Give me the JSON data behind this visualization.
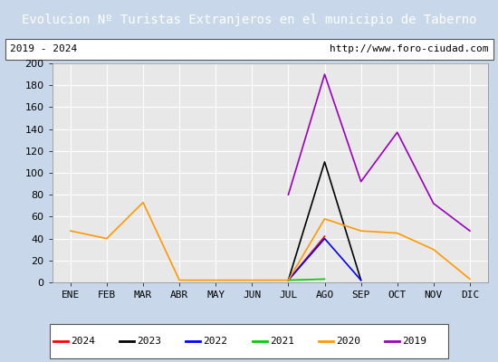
{
  "title": "Evolucion Nº Turistas Extranjeros en el municipio de Taberno",
  "subtitle_left": "2019 - 2024",
  "subtitle_right": "http://www.foro-ciudad.com",
  "months": [
    "ENE",
    "FEB",
    "MAR",
    "ABR",
    "MAY",
    "JUN",
    "JUL",
    "AGO",
    "SEP",
    "OCT",
    "NOV",
    "DIC"
  ],
  "ylim": [
    0,
    200
  ],
  "yticks": [
    0,
    20,
    40,
    60,
    80,
    100,
    120,
    140,
    160,
    180,
    200
  ],
  "series": {
    "2024": {
      "color": "#ff0000",
      "linewidth": 1.2,
      "data": [
        null,
        null,
        null,
        null,
        null,
        null,
        2,
        42,
        null,
        null,
        null,
        null
      ]
    },
    "2023": {
      "color": "#000000",
      "linewidth": 1.2,
      "data": [
        null,
        null,
        null,
        null,
        null,
        null,
        2,
        110,
        2,
        null,
        null,
        null
      ]
    },
    "2022": {
      "color": "#0000ff",
      "linewidth": 1.2,
      "data": [
        null,
        null,
        null,
        null,
        null,
        null,
        2,
        40,
        2,
        null,
        null,
        null
      ]
    },
    "2021": {
      "color": "#00cc00",
      "linewidth": 1.2,
      "data": [
        null,
        null,
        null,
        null,
        null,
        null,
        2,
        3,
        null,
        null,
        null,
        null
      ]
    },
    "2020": {
      "color": "#ff9900",
      "linewidth": 1.2,
      "data": [
        47,
        40,
        73,
        2,
        2,
        2,
        2,
        58,
        47,
        45,
        30,
        3
      ]
    },
    "2019": {
      "color": "#9900bb",
      "linewidth": 1.2,
      "data": [
        null,
        null,
        null,
        null,
        null,
        null,
        80,
        190,
        92,
        137,
        72,
        47
      ]
    }
  },
  "legend_order": [
    "2024",
    "2023",
    "2022",
    "2021",
    "2020",
    "2019"
  ],
  "title_bg_color": "#4472c4",
  "title_text_color": "#ffffff",
  "title_fontsize": 10,
  "subtitle_fontsize": 8,
  "tick_fontsize": 8,
  "axis_bg_color": "#e8e8e8",
  "grid_color": "#ffffff",
  "outer_bg_color": "#c8d8ea"
}
